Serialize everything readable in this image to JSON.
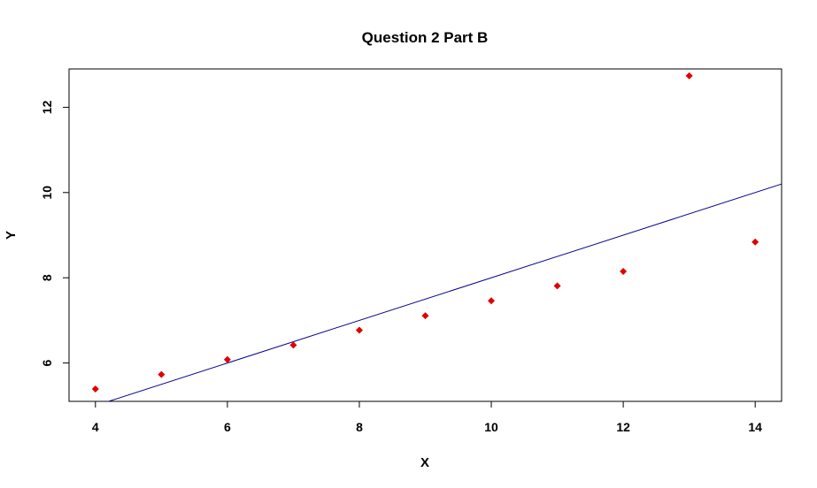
{
  "chart_data": {
    "type": "scatter",
    "title": "Question 2 Part B",
    "xlabel": "X",
    "ylabel": "Y",
    "xlim": [
      3.6,
      14.4
    ],
    "ylim": [
      5.1,
      12.9
    ],
    "x_ticks": [
      4,
      6,
      8,
      10,
      12,
      14
    ],
    "y_ticks": [
      6,
      8,
      10,
      12
    ],
    "grid": false,
    "legend": "none",
    "series": [
      {
        "type": "scatter",
        "marker": "diamond",
        "color": "#e00000",
        "x": [
          4,
          5,
          6,
          7,
          8,
          9,
          10,
          11,
          12,
          13,
          14
        ],
        "y": [
          5.39,
          5.73,
          6.08,
          6.42,
          6.77,
          7.11,
          7.46,
          7.81,
          8.15,
          12.74,
          8.84
        ]
      }
    ],
    "line": {
      "type": "line",
      "color": "#00008b",
      "intercept": 3.0,
      "slope": 0.5
    }
  }
}
